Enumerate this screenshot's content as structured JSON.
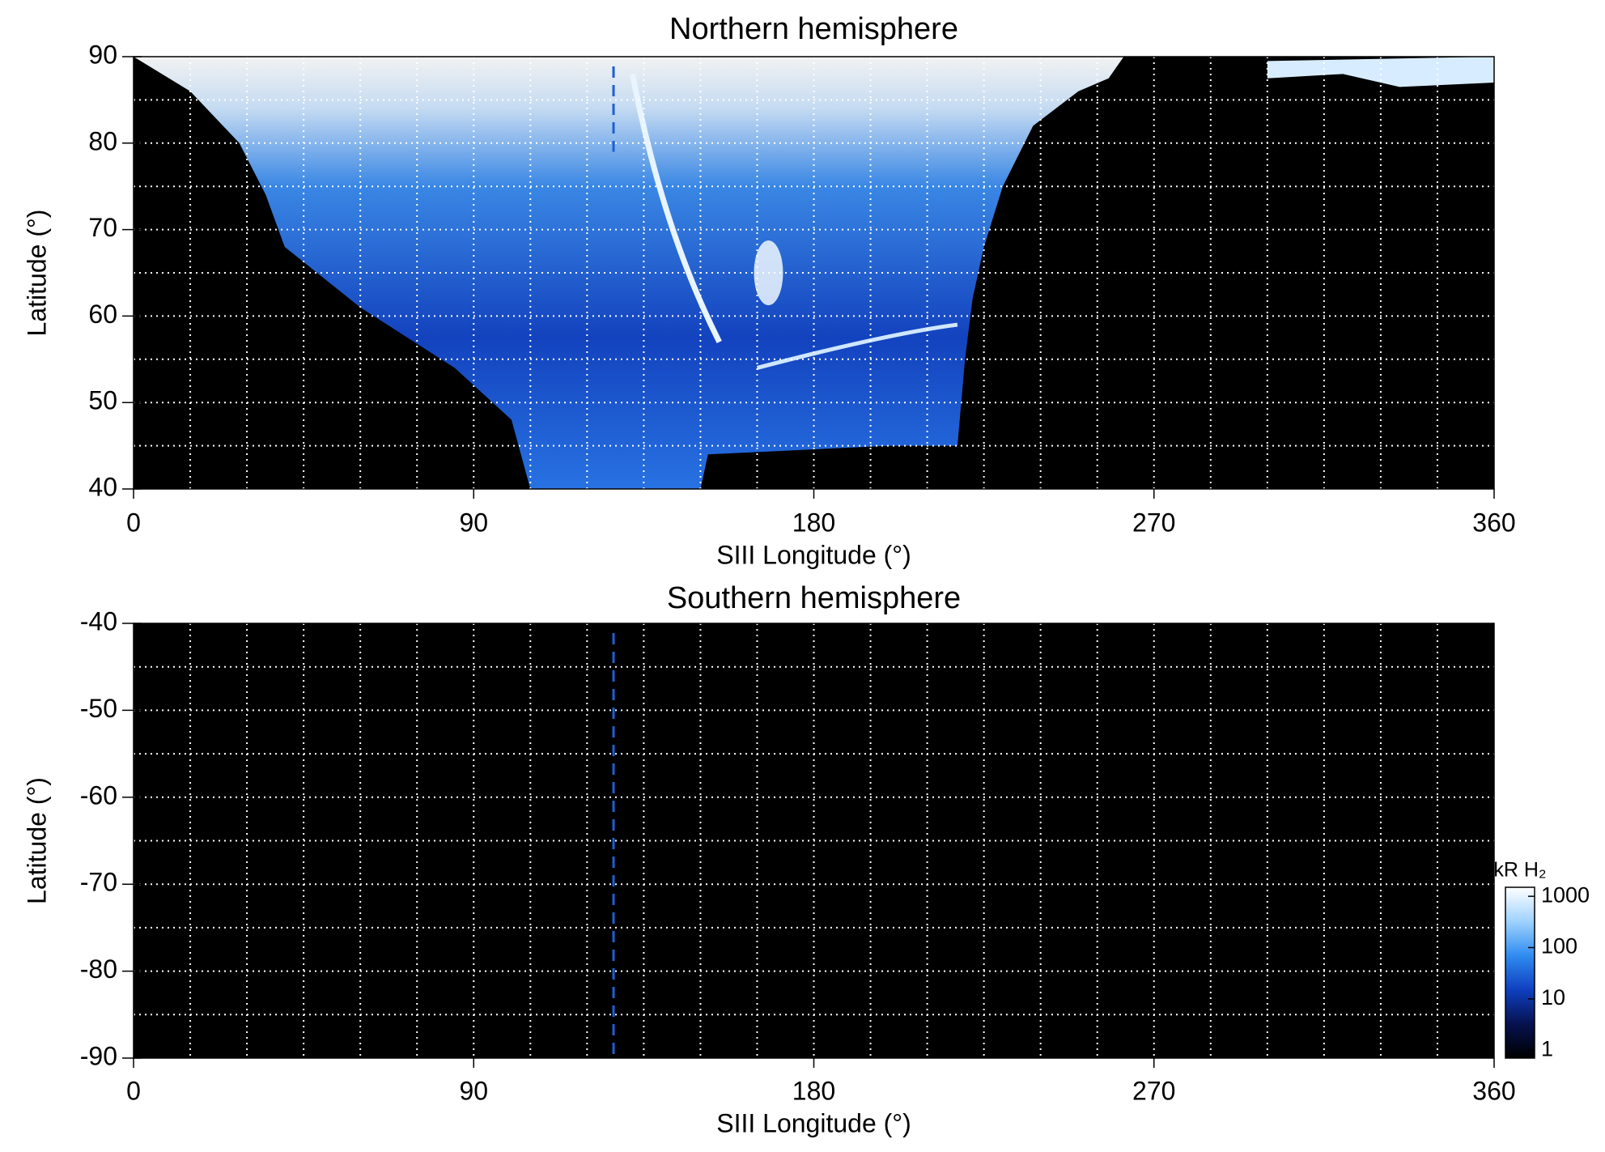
{
  "chart_data": [
    {
      "type": "heatmap",
      "title": "Northern hemisphere",
      "xlabel": "SIII Longitude (°)",
      "ylabel": "Latitude (°)",
      "xlim": [
        0,
        360
      ],
      "xticks": [
        0,
        90,
        180,
        270,
        360
      ],
      "ylim": [
        40,
        90
      ],
      "yticks": [
        40,
        50,
        60,
        70,
        80,
        90
      ],
      "grid": true,
      "xgrid_step": 15,
      "ygrid_step": 5,
      "vline": 127,
      "vline_color": "#1f5fd0"
    },
    {
      "type": "heatmap",
      "title": "Southern hemisphere",
      "xlabel": "SIII Longitude (°)",
      "ylabel": "Latitude (°)",
      "xlim": [
        0,
        360
      ],
      "xticks": [
        0,
        90,
        180,
        270,
        360
      ],
      "ylim": [
        -90,
        -40
      ],
      "yticks": [
        -90,
        -80,
        -70,
        -60,
        -50,
        -40
      ],
      "grid": true,
      "xgrid_step": 15,
      "ygrid_step": 5,
      "vline": 127,
      "vline_color": "#1f5fd0",
      "colorbar": {
        "label": "kR H₂",
        "log": true,
        "lim": [
          0.7,
          1500
        ],
        "ticks": [
          1,
          10,
          100,
          1000
        ],
        "colors": [
          "#000000",
          "#06124f",
          "#0f3fc0",
          "#2f8cf0",
          "#9fd2ff",
          "#ffffff"
        ]
      }
    }
  ]
}
